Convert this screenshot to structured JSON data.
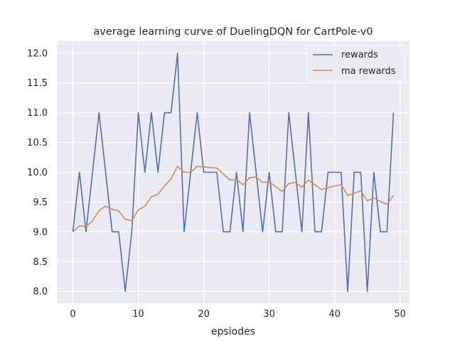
{
  "chart_data": {
    "type": "line",
    "title": "average learning curve of DuelingDQN for CartPole-v0",
    "xlabel": "epsiodes",
    "ylabel": "",
    "xlim": [
      -2.45,
      51.45
    ],
    "ylim": [
      7.8,
      12.2
    ],
    "xticks": [
      0,
      10,
      20,
      30,
      40,
      50
    ],
    "yticks": [
      8.0,
      8.5,
      9.0,
      9.5,
      10.0,
      10.5,
      11.0,
      11.5,
      12.0
    ],
    "grid": true,
    "legend_position": "top-right",
    "x": [
      0,
      1,
      2,
      3,
      4,
      5,
      6,
      7,
      8,
      9,
      10,
      11,
      12,
      13,
      14,
      15,
      16,
      17,
      18,
      19,
      20,
      21,
      22,
      23,
      24,
      25,
      26,
      27,
      28,
      29,
      30,
      31,
      32,
      33,
      34,
      35,
      36,
      37,
      38,
      39,
      40,
      41,
      42,
      43,
      44,
      45,
      46,
      47,
      48,
      49
    ],
    "series": [
      {
        "name": "rewards",
        "color": "#4c72b0",
        "values": [
          9,
          10,
          9,
          10,
          11,
          10,
          9,
          9,
          8,
          9,
          11,
          10,
          11,
          10,
          11,
          11,
          12,
          9,
          10,
          11,
          10,
          10,
          10,
          9,
          9,
          10,
          9,
          11,
          10,
          9,
          10,
          9,
          9,
          11,
          10,
          9,
          11,
          9,
          9,
          10,
          10,
          10,
          8,
          10,
          10,
          8,
          10,
          9,
          9,
          11
        ]
      },
      {
        "name": "ma rewards",
        "color": "#dd8452",
        "values": [
          9.0,
          9.1,
          9.09,
          9.18,
          9.36,
          9.43,
          9.38,
          9.35,
          9.21,
          9.19,
          9.37,
          9.43,
          9.59,
          9.63,
          9.77,
          9.89,
          10.1,
          10.0,
          10.0,
          10.1,
          10.09,
          10.08,
          10.07,
          9.97,
          9.87,
          9.88,
          9.79,
          9.91,
          9.92,
          9.83,
          9.84,
          9.76,
          9.68,
          9.81,
          9.83,
          9.75,
          9.87,
          9.79,
          9.71,
          9.74,
          9.77,
          9.79,
          9.61,
          9.65,
          9.69,
          9.52,
          9.57,
          9.51,
          9.46,
          9.61
        ]
      }
    ]
  }
}
